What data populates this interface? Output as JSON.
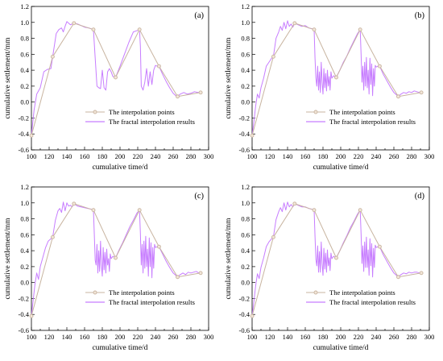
{
  "chart_data": [
    {
      "type": "line",
      "panel_label": "(a)",
      "xlabel": "cumulative time/d",
      "ylabel": "cumulative settlement/mm",
      "xlim": [
        100,
        300
      ],
      "ylim": [
        -0.6,
        1.2
      ],
      "xticks": [
        100,
        110,
        120,
        130,
        140,
        150,
        160,
        170,
        180,
        190,
        200,
        210,
        220,
        230,
        240,
        250,
        260,
        270,
        280,
        290,
        300
      ],
      "yticks": [
        -0.6,
        -0.4,
        -0.2,
        0.0,
        0.2,
        0.4,
        0.6,
        0.8,
        1.0,
        1.2
      ],
      "grid": false,
      "legend_position": "bottom-right",
      "series": [
        {
          "name": "The interpolation points",
          "color": "#c8b4a0",
          "marker": "circle",
          "x": [
            100,
            124,
            148,
            170,
            195,
            222,
            244,
            265,
            291
          ],
          "y": [
            -0.42,
            0.57,
            0.99,
            0.91,
            0.31,
            0.91,
            0.45,
            0.07,
            0.12
          ]
        },
        {
          "name": "The fractal interpolation results",
          "color": "#c77dff",
          "marker": "none",
          "x": [
            100,
            103,
            106,
            110,
            114,
            118,
            122,
            124,
            128,
            131,
            134,
            136,
            138,
            140,
            142,
            144,
            146,
            148,
            152,
            156,
            160,
            165,
            170,
            172,
            174,
            176,
            178,
            180,
            182,
            184,
            186,
            188,
            190,
            192,
            195,
            200,
            205,
            210,
            215,
            220,
            222,
            223,
            224,
            226,
            228,
            230,
            232,
            234,
            236,
            238,
            240,
            242,
            244,
            248,
            252,
            256,
            260,
            263,
            265,
            268,
            272,
            276,
            280,
            284,
            288,
            291
          ],
          "y": [
            -0.42,
            -0.1,
            0.1,
            0.18,
            0.38,
            0.41,
            0.42,
            0.57,
            0.86,
            0.91,
            0.93,
            0.88,
            0.95,
            1.01,
            0.99,
            0.97,
            0.98,
            0.99,
            0.98,
            0.96,
            0.94,
            0.93,
            0.91,
            0.55,
            0.2,
            0.18,
            0.17,
            0.4,
            0.18,
            0.15,
            0.38,
            0.42,
            0.38,
            0.32,
            0.31,
            0.45,
            0.6,
            0.75,
            0.88,
            0.9,
            0.91,
            0.7,
            0.2,
            0.15,
            0.25,
            0.42,
            0.2,
            0.38,
            0.22,
            0.4,
            0.46,
            0.45,
            0.45,
            0.35,
            0.26,
            0.18,
            0.11,
            0.08,
            0.07,
            0.1,
            0.12,
            0.1,
            0.11,
            0.13,
            0.12,
            0.12
          ]
        }
      ]
    },
    {
      "type": "line",
      "panel_label": "(b)",
      "xlabel": "cumulative time/d",
      "ylabel": "cumulative settlement/mm",
      "xlim": [
        100,
        300
      ],
      "ylim": [
        -0.6,
        1.2
      ],
      "xticks": [
        100,
        110,
        120,
        130,
        140,
        150,
        160,
        170,
        180,
        190,
        200,
        210,
        220,
        230,
        240,
        250,
        260,
        270,
        280,
        290,
        300
      ],
      "yticks": [
        -0.6,
        -0.4,
        -0.2,
        0.0,
        0.2,
        0.4,
        0.6,
        0.8,
        1.0,
        1.2
      ],
      "grid": false,
      "legend_position": "bottom-right",
      "series": [
        {
          "name": "The interpolation points",
          "color": "#c8b4a0",
          "marker": "circle",
          "x": [
            100,
            124,
            148,
            170,
            195,
            222,
            244,
            265,
            291
          ],
          "y": [
            -0.42,
            0.57,
            0.99,
            0.91,
            0.31,
            0.91,
            0.45,
            0.07,
            0.12
          ]
        },
        {
          "name": "The fractal interpolation results",
          "color": "#c77dff",
          "marker": "none",
          "x": [
            100,
            102,
            104,
            106,
            108,
            110,
            113,
            116,
            119,
            122,
            124,
            127,
            130,
            132,
            134,
            136,
            138,
            140,
            142,
            144,
            146,
            148,
            152,
            156,
            160,
            164,
            168,
            170,
            171,
            172,
            173,
            174,
            175,
            176,
            177,
            178,
            179,
            180,
            181,
            182,
            183,
            184,
            185,
            186,
            187,
            188,
            189,
            190,
            192,
            195,
            199,
            203,
            207,
            211,
            215,
            219,
            222,
            223,
            224,
            225,
            226,
            227,
            228,
            229,
            230,
            231,
            232,
            233,
            234,
            235,
            236,
            237,
            238,
            239,
            240,
            242,
            244,
            248,
            252,
            256,
            260,
            263,
            265,
            268,
            271,
            274,
            277,
            280,
            283,
            286,
            289,
            291
          ],
          "y": [
            -0.42,
            -0.25,
            -0.05,
            0.1,
            0.05,
            0.18,
            0.3,
            0.45,
            0.5,
            0.55,
            0.57,
            0.8,
            0.88,
            0.95,
            0.9,
            1.0,
            0.92,
            1.02,
            0.95,
            0.98,
            0.94,
            0.99,
            0.97,
            0.95,
            0.96,
            0.93,
            0.92,
            0.91,
            0.55,
            0.3,
            0.2,
            0.45,
            0.15,
            0.38,
            0.12,
            0.5,
            0.25,
            0.1,
            0.42,
            0.18,
            0.36,
            0.14,
            0.4,
            0.2,
            0.32,
            0.15,
            0.38,
            0.3,
            0.33,
            0.31,
            0.4,
            0.5,
            0.58,
            0.68,
            0.77,
            0.86,
            0.91,
            0.6,
            0.25,
            0.45,
            0.15,
            0.5,
            0.2,
            0.56,
            0.18,
            0.4,
            0.1,
            0.55,
            0.22,
            0.48,
            0.08,
            0.42,
            0.2,
            0.46,
            0.44,
            0.45,
            0.45,
            0.35,
            0.27,
            0.19,
            0.12,
            0.09,
            0.07,
            0.1,
            0.12,
            0.11,
            0.13,
            0.12,
            0.14,
            0.13,
            0.12,
            0.12
          ]
        }
      ]
    },
    {
      "type": "line",
      "panel_label": "(c)",
      "xlabel": "cumulative time/d",
      "ylabel": "cumulative settlement/mm",
      "xlim": [
        100,
        300
      ],
      "ylim": [
        -0.6,
        1.2
      ],
      "xticks": [
        100,
        110,
        120,
        130,
        140,
        150,
        160,
        170,
        180,
        190,
        200,
        210,
        220,
        230,
        240,
        250,
        260,
        270,
        280,
        290,
        300
      ],
      "yticks": [
        -0.6,
        -0.4,
        -0.2,
        0.0,
        0.2,
        0.4,
        0.6,
        0.8,
        1.0,
        1.2
      ],
      "grid": false,
      "legend_position": "bottom-right",
      "series": [
        {
          "name": "The interpolation points",
          "color": "#c8b4a0",
          "marker": "circle",
          "x": [
            100,
            124,
            148,
            170,
            195,
            222,
            244,
            265,
            291
          ],
          "y": [
            -0.42,
            0.57,
            0.99,
            0.91,
            0.31,
            0.91,
            0.45,
            0.07,
            0.12
          ]
        },
        {
          "name": "The fractal interpolation results",
          "color": "#c77dff",
          "marker": "none",
          "x": [
            100,
            102,
            104,
            106,
            108,
            110,
            113,
            116,
            119,
            122,
            124,
            127,
            130,
            132,
            134,
            136,
            138,
            140,
            142,
            144,
            146,
            148,
            152,
            156,
            160,
            164,
            168,
            170,
            171,
            172,
            173,
            174,
            175,
            176,
            177,
            178,
            179,
            180,
            181,
            182,
            183,
            184,
            185,
            186,
            187,
            188,
            189,
            190,
            192,
            195,
            199,
            203,
            207,
            211,
            215,
            219,
            222,
            223,
            224,
            225,
            226,
            227,
            228,
            229,
            230,
            231,
            232,
            233,
            234,
            235,
            236,
            237,
            238,
            239,
            240,
            242,
            244,
            248,
            252,
            256,
            260,
            263,
            265,
            268,
            271,
            274,
            277,
            280,
            283,
            286,
            289,
            291
          ],
          "y": [
            -0.42,
            -0.22,
            -0.02,
            0.12,
            0.04,
            0.2,
            0.32,
            0.44,
            0.52,
            0.55,
            0.57,
            0.78,
            0.9,
            0.93,
            0.88,
            1.01,
            0.9,
            1.0,
            0.96,
            0.97,
            0.95,
            0.99,
            0.96,
            0.95,
            0.94,
            0.93,
            0.92,
            0.91,
            0.6,
            0.28,
            0.22,
            0.48,
            0.12,
            0.4,
            0.14,
            0.52,
            0.22,
            0.08,
            0.44,
            0.16,
            0.38,
            0.12,
            0.42,
            0.22,
            0.3,
            0.14,
            0.36,
            0.3,
            0.33,
            0.31,
            0.41,
            0.5,
            0.6,
            0.7,
            0.78,
            0.87,
            0.91,
            0.62,
            0.22,
            0.48,
            0.12,
            0.52,
            0.18,
            0.58,
            0.2,
            0.42,
            0.08,
            0.56,
            0.2,
            0.5,
            0.06,
            0.44,
            0.18,
            0.48,
            0.44,
            0.45,
            0.45,
            0.36,
            0.27,
            0.19,
            0.12,
            0.09,
            0.07,
            0.1,
            0.12,
            0.1,
            0.13,
            0.12,
            0.13,
            0.14,
            0.12,
            0.12
          ]
        }
      ]
    },
    {
      "type": "line",
      "panel_label": "(d)",
      "xlabel": "cumulative time/d",
      "ylabel": "cumulative settlement/mm",
      "xlim": [
        100,
        300
      ],
      "ylim": [
        -0.6,
        1.2
      ],
      "xticks": [
        100,
        110,
        120,
        130,
        140,
        150,
        160,
        170,
        180,
        190,
        200,
        210,
        220,
        230,
        240,
        250,
        260,
        270,
        280,
        290,
        300
      ],
      "yticks": [
        -0.6,
        -0.4,
        -0.2,
        0.0,
        0.2,
        0.4,
        0.6,
        0.8,
        1.0,
        1.2
      ],
      "grid": false,
      "legend_position": "bottom-right",
      "series": [
        {
          "name": "The interpolation points",
          "color": "#c8b4a0",
          "marker": "circle",
          "x": [
            100,
            124,
            148,
            170,
            195,
            222,
            244,
            265,
            291
          ],
          "y": [
            -0.42,
            0.57,
            0.99,
            0.91,
            0.31,
            0.91,
            0.45,
            0.07,
            0.12
          ]
        },
        {
          "name": "The fractal interpolation results",
          "color": "#c77dff",
          "marker": "none",
          "x": [
            100,
            102,
            104,
            106,
            108,
            110,
            113,
            116,
            119,
            122,
            124,
            127,
            130,
            132,
            134,
            136,
            138,
            140,
            142,
            144,
            146,
            148,
            152,
            156,
            160,
            164,
            168,
            170,
            171,
            172,
            173,
            174,
            175,
            176,
            177,
            178,
            179,
            180,
            181,
            182,
            183,
            184,
            185,
            186,
            187,
            188,
            189,
            190,
            192,
            195,
            199,
            203,
            207,
            211,
            215,
            219,
            222,
            223,
            224,
            225,
            226,
            227,
            228,
            229,
            230,
            231,
            232,
            233,
            234,
            235,
            236,
            237,
            238,
            239,
            240,
            242,
            244,
            248,
            252,
            256,
            260,
            263,
            265,
            268,
            271,
            274,
            277,
            280,
            283,
            286,
            289,
            291
          ],
          "y": [
            -0.42,
            -0.24,
            -0.04,
            0.11,
            0.05,
            0.19,
            0.31,
            0.45,
            0.51,
            0.55,
            0.57,
            0.79,
            0.89,
            0.94,
            0.89,
            1.0,
            0.91,
            1.01,
            0.95,
            0.98,
            0.95,
            0.99,
            0.97,
            0.95,
            0.95,
            0.93,
            0.92,
            0.91,
            0.58,
            0.29,
            0.21,
            0.46,
            0.13,
            0.39,
            0.13,
            0.51,
            0.24,
            0.09,
            0.43,
            0.17,
            0.37,
            0.13,
            0.41,
            0.21,
            0.31,
            0.15,
            0.37,
            0.3,
            0.33,
            0.31,
            0.4,
            0.5,
            0.59,
            0.69,
            0.77,
            0.86,
            0.91,
            0.61,
            0.24,
            0.46,
            0.14,
            0.51,
            0.19,
            0.57,
            0.19,
            0.41,
            0.09,
            0.55,
            0.21,
            0.49,
            0.07,
            0.43,
            0.19,
            0.47,
            0.44,
            0.45,
            0.45,
            0.35,
            0.27,
            0.19,
            0.12,
            0.09,
            0.07,
            0.1,
            0.12,
            0.11,
            0.13,
            0.12,
            0.13,
            0.13,
            0.12,
            0.12
          ]
        }
      ]
    }
  ]
}
